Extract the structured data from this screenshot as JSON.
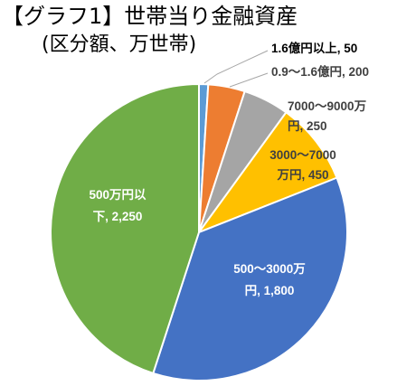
{
  "chart_data": {
    "type": "pie",
    "title": "【グラフ1】世帯当り金融資産",
    "subtitle": "(区分額、万世帯)",
    "slices": [
      {
        "label": "1.6億円以上",
        "value": 50,
        "value_text": "50",
        "color": "#5B9BD5"
      },
      {
        "label": "0.9〜1.6億円",
        "value": 200,
        "value_text": "200",
        "color": "#ED7D31"
      },
      {
        "label": "7000〜9000万円",
        "value": 250,
        "value_text": "250",
        "color": "#A5A5A5"
      },
      {
        "label": "3000〜7000万円",
        "value": 450,
        "value_text": "450",
        "color": "#FFC000"
      },
      {
        "label": "500〜3000万円",
        "value": 1800,
        "value_text": "1,800",
        "color": "#4472C4"
      },
      {
        "label": "500万円以下",
        "value": 2250,
        "value_text": "2,250",
        "color": "#70AD47"
      }
    ],
    "label_lines": [
      [
        "1.6億円以上, 50"
      ],
      [
        "0.9〜1.6億円, 200"
      ],
      [
        "7000〜9000万",
        "円, 250"
      ],
      [
        "3000〜7000",
        "万円, 450"
      ],
      [
        "500〜3000万",
        "円, 1,800"
      ],
      [
        "500万円以",
        "下, 2,250"
      ]
    ]
  }
}
